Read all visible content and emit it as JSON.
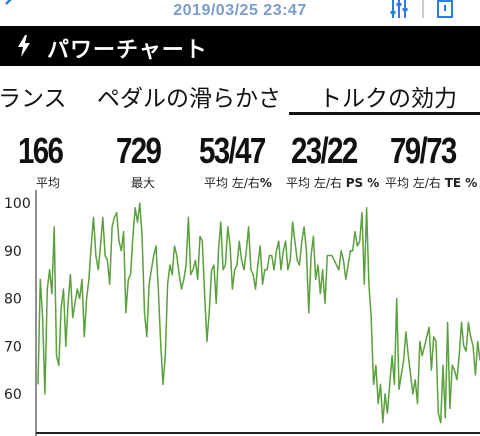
{
  "status_bar": {
    "timestamp": "2019/03/25 23:47"
  },
  "header": {
    "title": "パワーチャート"
  },
  "tabs": [
    {
      "label": "ランス"
    },
    {
      "label": "ペダルの滑らかさ"
    },
    {
      "label": "トルクの効力"
    }
  ],
  "stats": [
    {
      "value": "166",
      "label": "平均"
    },
    {
      "value": "729",
      "label": "最大"
    },
    {
      "value": "53/47",
      "label_prefix": "平均 左/右",
      "label_suffix": "%"
    },
    {
      "value": "23/22",
      "label_prefix": "平均 左/右 ",
      "label_suffix": "PS %"
    },
    {
      "value": "79/73",
      "label_prefix": "平均 左/右 ",
      "label_suffix": "TE %"
    }
  ],
  "colors": {
    "line": "#5aa03c",
    "timestamp": "#7a9cc8",
    "header_bg": "#000000"
  },
  "chart_data": {
    "type": "line",
    "y_ticks": [
      "100",
      "90",
      "80",
      "70",
      "60"
    ],
    "ylim": [
      56,
      100
    ],
    "grid": false,
    "series": [
      {
        "values": [
          62,
          84,
          76,
          60,
          82,
          86,
          81,
          95,
          68,
          66,
          78,
          82,
          70,
          79,
          85,
          76,
          79,
          82,
          80,
          84,
          72,
          80,
          84,
          91,
          97,
          89,
          86,
          91,
          97,
          89,
          88,
          83,
          95,
          97,
          98,
          92,
          90,
          94,
          77,
          84,
          85,
          93,
          99,
          96,
          100,
          93,
          77,
          72,
          83,
          86,
          89,
          91,
          82,
          71,
          62,
          68,
          83,
          87,
          85,
          91,
          89,
          85,
          82,
          84,
          87,
          97,
          85,
          86,
          88,
          84,
          93,
          92,
          81,
          71,
          77,
          86,
          87,
          79,
          90,
          96,
          86,
          87,
          95,
          91,
          82,
          86,
          87,
          92,
          88,
          86,
          90,
          95,
          86,
          85,
          82,
          87,
          91,
          83,
          86,
          86,
          89,
          89,
          86,
          90,
          92,
          86,
          90,
          92,
          86,
          88,
          96,
          92,
          88,
          87,
          92,
          95,
          90,
          77,
          89,
          93,
          84,
          87,
          81,
          86,
          79,
          89,
          89,
          89,
          88,
          87,
          86,
          90,
          88,
          84,
          87,
          90,
          90,
          94,
          91,
          92,
          98,
          83,
          99,
          83,
          76,
          62,
          66,
          58,
          62,
          54,
          60,
          56,
          62,
          68,
          62,
          80,
          61,
          64,
          67,
          73,
          68,
          64,
          60,
          63,
          58,
          71,
          68,
          70,
          72,
          74,
          65,
          72,
          71,
          56,
          54,
          66,
          55,
          75,
          57,
          66,
          65,
          63,
          68,
          75,
          70,
          69,
          75,
          72,
          70,
          64,
          71,
          67
        ]
      }
    ]
  }
}
